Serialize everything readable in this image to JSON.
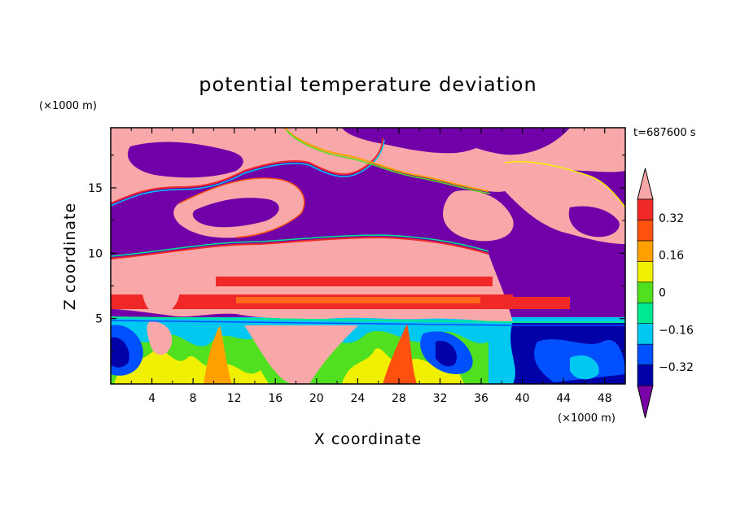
{
  "chart_data": {
    "type": "heatmap",
    "title": "potential temperature deviation",
    "xlabel": "X coordinate",
    "ylabel": "Z coordinate",
    "x_unit": "(×1000 m)",
    "z_unit": "(×1000 m)",
    "time_label": "t=687600 s",
    "xlim": [
      0,
      50
    ],
    "zlim": [
      0,
      19.6
    ],
    "x_ticks": [
      4,
      8,
      12,
      16,
      20,
      24,
      28,
      32,
      36,
      40,
      44,
      48
    ],
    "z_ticks": [
      5,
      10,
      15
    ],
    "colorbar": {
      "levels": [
        -0.48,
        -0.4,
        -0.32,
        -0.24,
        -0.16,
        -0.08,
        0,
        0.08,
        0.16,
        0.24,
        0.32,
        0.4
      ],
      "tick_values": [
        -0.32,
        -0.16,
        0,
        0.16,
        0.32
      ],
      "tick_labels": [
        "−0.32",
        "−0.16",
        "0",
        "0.16",
        "0.32"
      ],
      "colors": [
        "#7a00a8",
        "#0000a8",
        "#0050ff",
        "#00c8f0",
        "#00e890",
        "#50e020",
        "#f0f000",
        "#ffa000",
        "#ff5010",
        "#f02828",
        "#f8a8a8"
      ],
      "extend": "both"
    }
  },
  "palette": {
    "purple": "#7200a8",
    "pink": "#f8a8a8",
    "red": "#f02828",
    "orange": "#ff6818",
    "cyan": "#00c8f0",
    "blue": "#0050ff",
    "navy": "#0000a8",
    "green": "#50e020",
    "yellow": "#f0f000"
  }
}
